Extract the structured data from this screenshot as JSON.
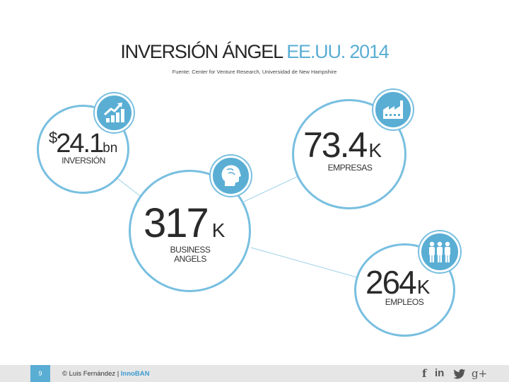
{
  "title": {
    "main": "INVERSIÓN ÁNGEL",
    "accent": "EE.UU. 2014"
  },
  "source": "Fuente: Center for Venture Research, Universidad de New Hampshire",
  "stats": {
    "investment": {
      "currency": "$",
      "value": "24.1",
      "unit": "bn",
      "label": "INVERSIÓN",
      "icon": "growth-chart-icon"
    },
    "angels": {
      "value": "317",
      "unit": "K",
      "label_line1": "BUSINESS",
      "label_line2": "ANGELS",
      "icon": "head-icon"
    },
    "companies": {
      "value": "73.4",
      "unit": "K",
      "label": "EMPRESAS",
      "icon": "factory-icon"
    },
    "jobs": {
      "value": "264",
      "unit": "K",
      "label": "EMPLEOS",
      "icon": "people-icon"
    }
  },
  "footer": {
    "page": "9",
    "copyright": "© Luis Fernández | ",
    "brand": "InnoBAN",
    "social": {
      "facebook": "f",
      "linkedin": "in",
      "twitter": "twitter-icon",
      "googleplus": "g+"
    }
  },
  "colors": {
    "accent": "#5aaed4",
    "ring": "#78bfe0",
    "footer_bg": "#e6e6e6"
  }
}
